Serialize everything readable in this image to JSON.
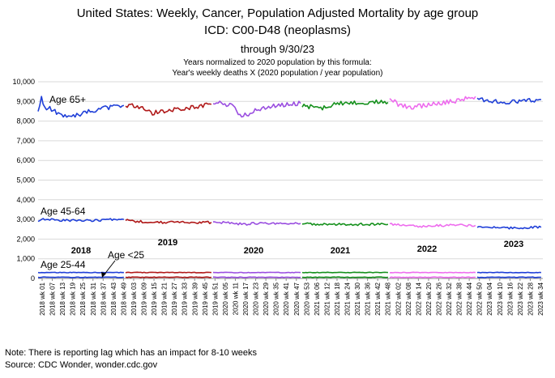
{
  "header": {
    "title": "United States: Weekly, Cancer, Population Adjusted Mortality by age group",
    "subtitle": "ICD: C00-D48 (neoplasms)",
    "through": "through 9/30/23",
    "formula_line1": "Years normalized to 2020 population by this formula:",
    "formula_line2": "Year's weekly deaths  X (2020 population / year population)"
  },
  "footer": {
    "note": "Note: There is reporting lag which has an impact for 8-10 weeks",
    "source": "Source: CDC Wonder, wonder.cdc.gov"
  },
  "chart_data": {
    "type": "line",
    "title": "United States: Weekly, Cancer, Population Adjusted Mortality by age group",
    "xlabel": "",
    "ylabel": "",
    "ylim": [
      0,
      10000
    ],
    "grid": true,
    "y_ticks": [
      "0",
      "1,000",
      "2,000",
      "3,000",
      "4,000",
      "5,000",
      "6,000",
      "7,000",
      "8,000",
      "9,000",
      "10,000"
    ],
    "x_tick_labels": [
      "2018 wk 01",
      "2018 wk 07",
      "2018 wk 13",
      "2018 wk 19",
      "2018 wk 25",
      "2018 wk 31",
      "2018 wk 37",
      "2018 wk 43",
      "2018 wk 49",
      "2019 wk 03",
      "2019 wk 09",
      "2019 wk 15",
      "2019 wk 21",
      "2019 wk 27",
      "2019 wk 33",
      "2019 wk 39",
      "2019 wk 45",
      "2019 wk 51",
      "2020 wk 05",
      "2020 wk 11",
      "2020 wk 17",
      "2020 wk 23",
      "2020 wk 29",
      "2020 wk 35",
      "2020 wk 41",
      "2020 wk 47",
      "2020 wk 53",
      "2021 wk 06",
      "2021 wk 12",
      "2021 wk 18",
      "2021 wk 24",
      "2021 wk 30",
      "2021 wk 36",
      "2021 wk 42",
      "2021 wk 48",
      "2022 wk 02",
      "2022 wk 08",
      "2022 wk 14",
      "2022 wk 20",
      "2022 wk 26",
      "2022 wk 32",
      "2022 wk 38",
      "2022 wk 44",
      "2022 wk 50",
      "2023 wk 04",
      "2023 wk 10",
      "2023 wk 16",
      "2023 wk 22",
      "2023 wk 28",
      "2023 wk 34"
    ],
    "year_labels": [
      "2018",
      "2019",
      "2020",
      "2021",
      "2022",
      "2023"
    ],
    "year_colors": {
      "2018": "#1f3fd8",
      "2019": "#b01818",
      "2020": "#9a4ee0",
      "2021": "#15901c",
      "2022": "#ee6cee",
      "2023": "#1f3fd8"
    },
    "annotations": [
      "Age 65+",
      "Age 45-64",
      "Age <25",
      "Age 25-44"
    ],
    "series": [
      {
        "name": "Age 65+",
        "yearly_points": {
          "2018": [
            [
              1,
              8500
            ],
            [
              3,
              9150
            ],
            [
              5,
              8700
            ],
            [
              8,
              8650
            ],
            [
              12,
              8450
            ],
            [
              16,
              8300
            ],
            [
              18,
              8200
            ],
            [
              22,
              8300
            ],
            [
              26,
              8350
            ],
            [
              30,
              8450
            ],
            [
              35,
              8550
            ],
            [
              40,
              8650
            ],
            [
              44,
              8700
            ],
            [
              48,
              8750
            ],
            [
              52,
              8800
            ]
          ],
          "2019": [
            [
              1,
              8700
            ],
            [
              4,
              8800
            ],
            [
              8,
              8750
            ],
            [
              12,
              8600
            ],
            [
              16,
              8400
            ],
            [
              20,
              8450
            ],
            [
              24,
              8500
            ],
            [
              28,
              8550
            ],
            [
              32,
              8600
            ],
            [
              36,
              8650
            ],
            [
              40,
              8700
            ],
            [
              44,
              8750
            ],
            [
              48,
              8800
            ],
            [
              52,
              8850
            ]
          ],
          "2020": [
            [
              1,
              8850
            ],
            [
              4,
              8950
            ],
            [
              8,
              8850
            ],
            [
              12,
              8800
            ],
            [
              14,
              8700
            ],
            [
              16,
              8400
            ],
            [
              18,
              8250
            ],
            [
              20,
              8300
            ],
            [
              24,
              8450
            ],
            [
              28,
              8600
            ],
            [
              32,
              8650
            ],
            [
              36,
              8750
            ],
            [
              40,
              8800
            ],
            [
              44,
              8850
            ],
            [
              48,
              8900
            ],
            [
              53,
              8900
            ]
          ],
          "2021": [
            [
              1,
              8800
            ],
            [
              4,
              8750
            ],
            [
              8,
              8700
            ],
            [
              12,
              8650
            ],
            [
              16,
              8750
            ],
            [
              20,
              8850
            ],
            [
              24,
              8900
            ],
            [
              28,
              8950
            ],
            [
              32,
              8950
            ],
            [
              36,
              8950
            ],
            [
              40,
              8950
            ],
            [
              44,
              8950
            ],
            [
              48,
              9000
            ],
            [
              52,
              8950
            ]
          ],
          "2022": [
            [
              1,
              9200
            ],
            [
              3,
              9050
            ],
            [
              6,
              8850
            ],
            [
              10,
              8750
            ],
            [
              14,
              8700
            ],
            [
              18,
              8750
            ],
            [
              22,
              8800
            ],
            [
              26,
              8850
            ],
            [
              30,
              8900
            ],
            [
              34,
              8950
            ],
            [
              38,
              9000
            ],
            [
              42,
              9050
            ],
            [
              46,
              9150
            ],
            [
              50,
              9200
            ],
            [
              52,
              9250
            ]
          ],
          "2023": [
            [
              1,
              9200
            ],
            [
              4,
              9100
            ],
            [
              8,
              9050
            ],
            [
              12,
              9000
            ],
            [
              16,
              8950
            ],
            [
              20,
              8950
            ],
            [
              24,
              9000
            ],
            [
              28,
              9000
            ],
            [
              32,
              9050
            ],
            [
              36,
              9050
            ],
            [
              39,
              9100
            ]
          ]
        }
      },
      {
        "name": "Age 45-64",
        "yearly_points": {
          "2018": [
            [
              1,
              2900
            ],
            [
              3,
              3050
            ],
            [
              8,
              3000
            ],
            [
              14,
              2950
            ],
            [
              20,
              2950
            ],
            [
              26,
              2950
            ],
            [
              32,
              2950
            ],
            [
              38,
              2950
            ],
            [
              44,
              3000
            ],
            [
              48,
              2950
            ],
            [
              52,
              3000
            ]
          ],
          "2019": [
            [
              1,
              2950
            ],
            [
              8,
              2900
            ],
            [
              16,
              2850
            ],
            [
              24,
              2850
            ],
            [
              32,
              2850
            ],
            [
              40,
              2850
            ],
            [
              48,
              2850
            ],
            [
              52,
              2850
            ]
          ],
          "2020": [
            [
              1,
              2850
            ],
            [
              8,
              2850
            ],
            [
              14,
              2800
            ],
            [
              20,
              2750
            ],
            [
              26,
              2800
            ],
            [
              32,
              2800
            ],
            [
              40,
              2800
            ],
            [
              48,
              2800
            ],
            [
              53,
              2800
            ]
          ],
          "2021": [
            [
              1,
              2800
            ],
            [
              8,
              2750
            ],
            [
              16,
              2750
            ],
            [
              24,
              2750
            ],
            [
              32,
              2750
            ],
            [
              40,
              2750
            ],
            [
              48,
              2750
            ],
            [
              52,
              2750
            ]
          ],
          "2022": [
            [
              1,
              2750
            ],
            [
              8,
              2700
            ],
            [
              16,
              2650
            ],
            [
              24,
              2650
            ],
            [
              32,
              2700
            ],
            [
              40,
              2700
            ],
            [
              48,
              2700
            ],
            [
              52,
              2700
            ]
          ],
          "2023": [
            [
              1,
              2650
            ],
            [
              8,
              2600
            ],
            [
              16,
              2600
            ],
            [
              24,
              2550
            ],
            [
              32,
              2600
            ],
            [
              39,
              2600
            ]
          ]
        }
      },
      {
        "name": "Age 25-44",
        "yearly_points": {
          "2018": [
            [
              1,
              300
            ],
            [
              26,
              300
            ],
            [
              52,
              300
            ]
          ],
          "2019": [
            [
              1,
              300
            ],
            [
              26,
              300
            ],
            [
              52,
              300
            ]
          ],
          "2020": [
            [
              1,
              300
            ],
            [
              26,
              300
            ],
            [
              53,
              300
            ]
          ],
          "2021": [
            [
              1,
              300
            ],
            [
              26,
              300
            ],
            [
              52,
              300
            ]
          ],
          "2022": [
            [
              1,
              300
            ],
            [
              26,
              300
            ],
            [
              52,
              300
            ]
          ],
          "2023": [
            [
              1,
              300
            ],
            [
              20,
              300
            ],
            [
              39,
              300
            ]
          ]
        }
      },
      {
        "name": "Age <25",
        "yearly_points": {
          "2018": [
            [
              1,
              60
            ],
            [
              26,
              60
            ],
            [
              52,
              60
            ]
          ],
          "2019": [
            [
              1,
              60
            ],
            [
              26,
              60
            ],
            [
              52,
              60
            ]
          ],
          "2020": [
            [
              1,
              60
            ],
            [
              26,
              60
            ],
            [
              53,
              60
            ]
          ],
          "2021": [
            [
              1,
              60
            ],
            [
              26,
              60
            ],
            [
              52,
              60
            ]
          ],
          "2022": [
            [
              1,
              60
            ],
            [
              26,
              60
            ],
            [
              52,
              60
            ]
          ],
          "2023": [
            [
              1,
              60
            ],
            [
              20,
              60
            ],
            [
              39,
              60
            ]
          ]
        }
      }
    ]
  }
}
